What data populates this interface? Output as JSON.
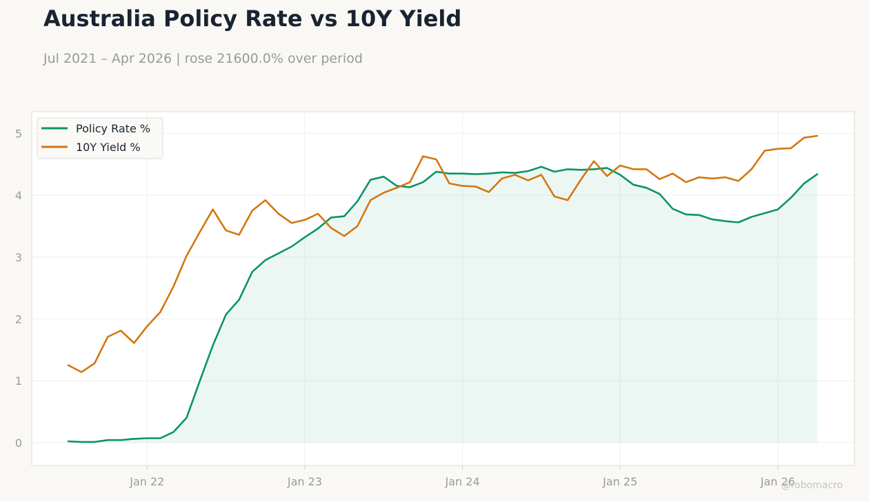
{
  "header": {
    "title": "Australia Policy Rate vs 10Y Yield",
    "subtitle": "Jul 2021 – Apr 2026 | rose 21600.0% over period",
    "watermark": "@robomacro"
  },
  "chart_data": {
    "type": "line",
    "title": "Australia Policy Rate vs 10Y Yield",
    "subtitle": "Jul 2021 – Apr 2026 | rose 21600.0% over period",
    "xlabel": "",
    "ylabel": "",
    "x_tick_labels": [
      "Jan 22",
      "Jan 23",
      "Jan 24",
      "Jan 25",
      "Jan 26"
    ],
    "y_ticks": [
      0,
      1,
      2,
      3,
      4,
      5
    ],
    "ylim": [
      -0.37,
      5.35
    ],
    "grid": true,
    "legend_position": "top-left",
    "x": [
      "2021-07",
      "2021-08",
      "2021-09",
      "2021-10",
      "2021-11",
      "2021-12",
      "2022-01",
      "2022-02",
      "2022-03",
      "2022-04",
      "2022-05",
      "2022-06",
      "2022-07",
      "2022-08",
      "2022-09",
      "2022-10",
      "2022-11",
      "2022-12",
      "2023-01",
      "2023-02",
      "2023-03",
      "2023-04",
      "2023-05",
      "2023-06",
      "2023-07",
      "2023-08",
      "2023-09",
      "2023-10",
      "2023-11",
      "2023-12",
      "2024-01",
      "2024-02",
      "2024-03",
      "2024-04",
      "2024-05",
      "2024-06",
      "2024-07",
      "2024-08",
      "2024-09",
      "2024-10",
      "2024-11",
      "2024-12",
      "2025-01",
      "2025-02",
      "2025-03",
      "2025-04",
      "2025-05",
      "2025-06",
      "2025-07",
      "2025-08",
      "2025-09",
      "2025-10",
      "2025-11",
      "2025-12",
      "2026-01",
      "2026-02",
      "2026-03",
      "2026-04"
    ],
    "series": [
      {
        "name": "Policy Rate %",
        "color": "#0a9467",
        "fill": true,
        "values": [
          0.02,
          0.01,
          0.01,
          0.04,
          0.04,
          0.06,
          0.07,
          0.07,
          0.17,
          0.4,
          0.99,
          1.57,
          2.07,
          2.31,
          2.76,
          2.95,
          3.06,
          3.17,
          3.32,
          3.46,
          3.64,
          3.66,
          3.9,
          4.25,
          4.3,
          4.15,
          4.13,
          4.21,
          4.38,
          4.35,
          4.35,
          4.34,
          4.35,
          4.37,
          4.36,
          4.39,
          4.46,
          4.38,
          4.42,
          4.41,
          4.42,
          4.44,
          4.33,
          4.17,
          4.12,
          4.02,
          3.78,
          3.69,
          3.68,
          3.61,
          3.58,
          3.56,
          3.65,
          3.71,
          3.77,
          3.96,
          4.19,
          4.34
        ]
      },
      {
        "name": "10Y Yield %",
        "color": "#d4760f",
        "fill": false,
        "values": [
          1.25,
          1.14,
          1.28,
          1.71,
          1.81,
          1.61,
          1.88,
          2.11,
          2.52,
          3.02,
          3.4,
          3.77,
          3.43,
          3.36,
          3.75,
          3.92,
          3.7,
          3.55,
          3.6,
          3.7,
          3.47,
          3.34,
          3.5,
          3.92,
          4.04,
          4.12,
          4.21,
          4.63,
          4.58,
          4.19,
          4.15,
          4.14,
          4.05,
          4.27,
          4.33,
          4.24,
          4.33,
          3.98,
          3.92,
          4.25,
          4.55,
          4.31,
          4.48,
          4.42,
          4.42,
          4.26,
          4.35,
          4.21,
          4.29,
          4.27,
          4.29,
          4.23,
          4.42,
          4.72,
          4.75,
          4.76,
          4.93,
          4.96
        ]
      }
    ]
  }
}
